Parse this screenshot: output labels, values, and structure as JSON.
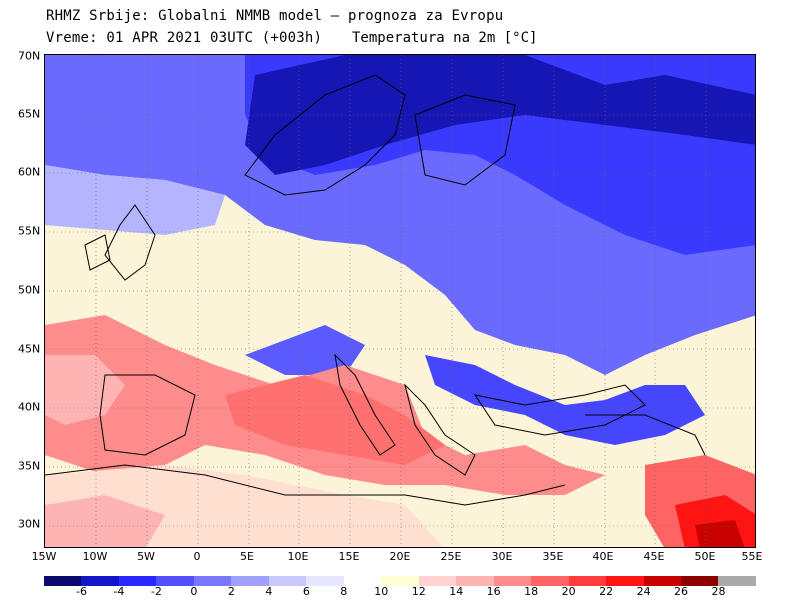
{
  "header": {
    "line1": "RHMZ Srbije: Globalni NMMB model — prognoza za Evropu",
    "line2": "Vreme: 01 APR 2021 03UTC (+003h)",
    "line3": "Temperatura na 2m [°C]"
  },
  "lat_labels": [
    "70N",
    "65N",
    "60N",
    "55N",
    "50N",
    "45N",
    "40N",
    "35N",
    "30N"
  ],
  "lon_labels": [
    "15W",
    "10W",
    "5W",
    "0",
    "5E",
    "10E",
    "15E",
    "20E",
    "25E",
    "30E",
    "35E",
    "40E",
    "45E",
    "50E",
    "55E"
  ],
  "legend": {
    "colors": [
      "#0a0a6e",
      "#1414c8",
      "#2828ff",
      "#5050ff",
      "#7878ff",
      "#a0a0ff",
      "#c8c8ff",
      "#e6e6ff",
      "#ffffff",
      "#ffffd2",
      "#ffd2d2",
      "#ffb4b4",
      "#ff8c8c",
      "#ff6464",
      "#ff3c3c",
      "#ff1414",
      "#c80000",
      "#8c0000",
      "#aaaaaa"
    ],
    "labels": [
      "-6",
      "-4",
      "-2",
      "0",
      "2",
      "4",
      "6",
      "8",
      "10",
      "12",
      "14",
      "16",
      "18",
      "20",
      "22",
      "24",
      "26",
      "28"
    ]
  }
}
